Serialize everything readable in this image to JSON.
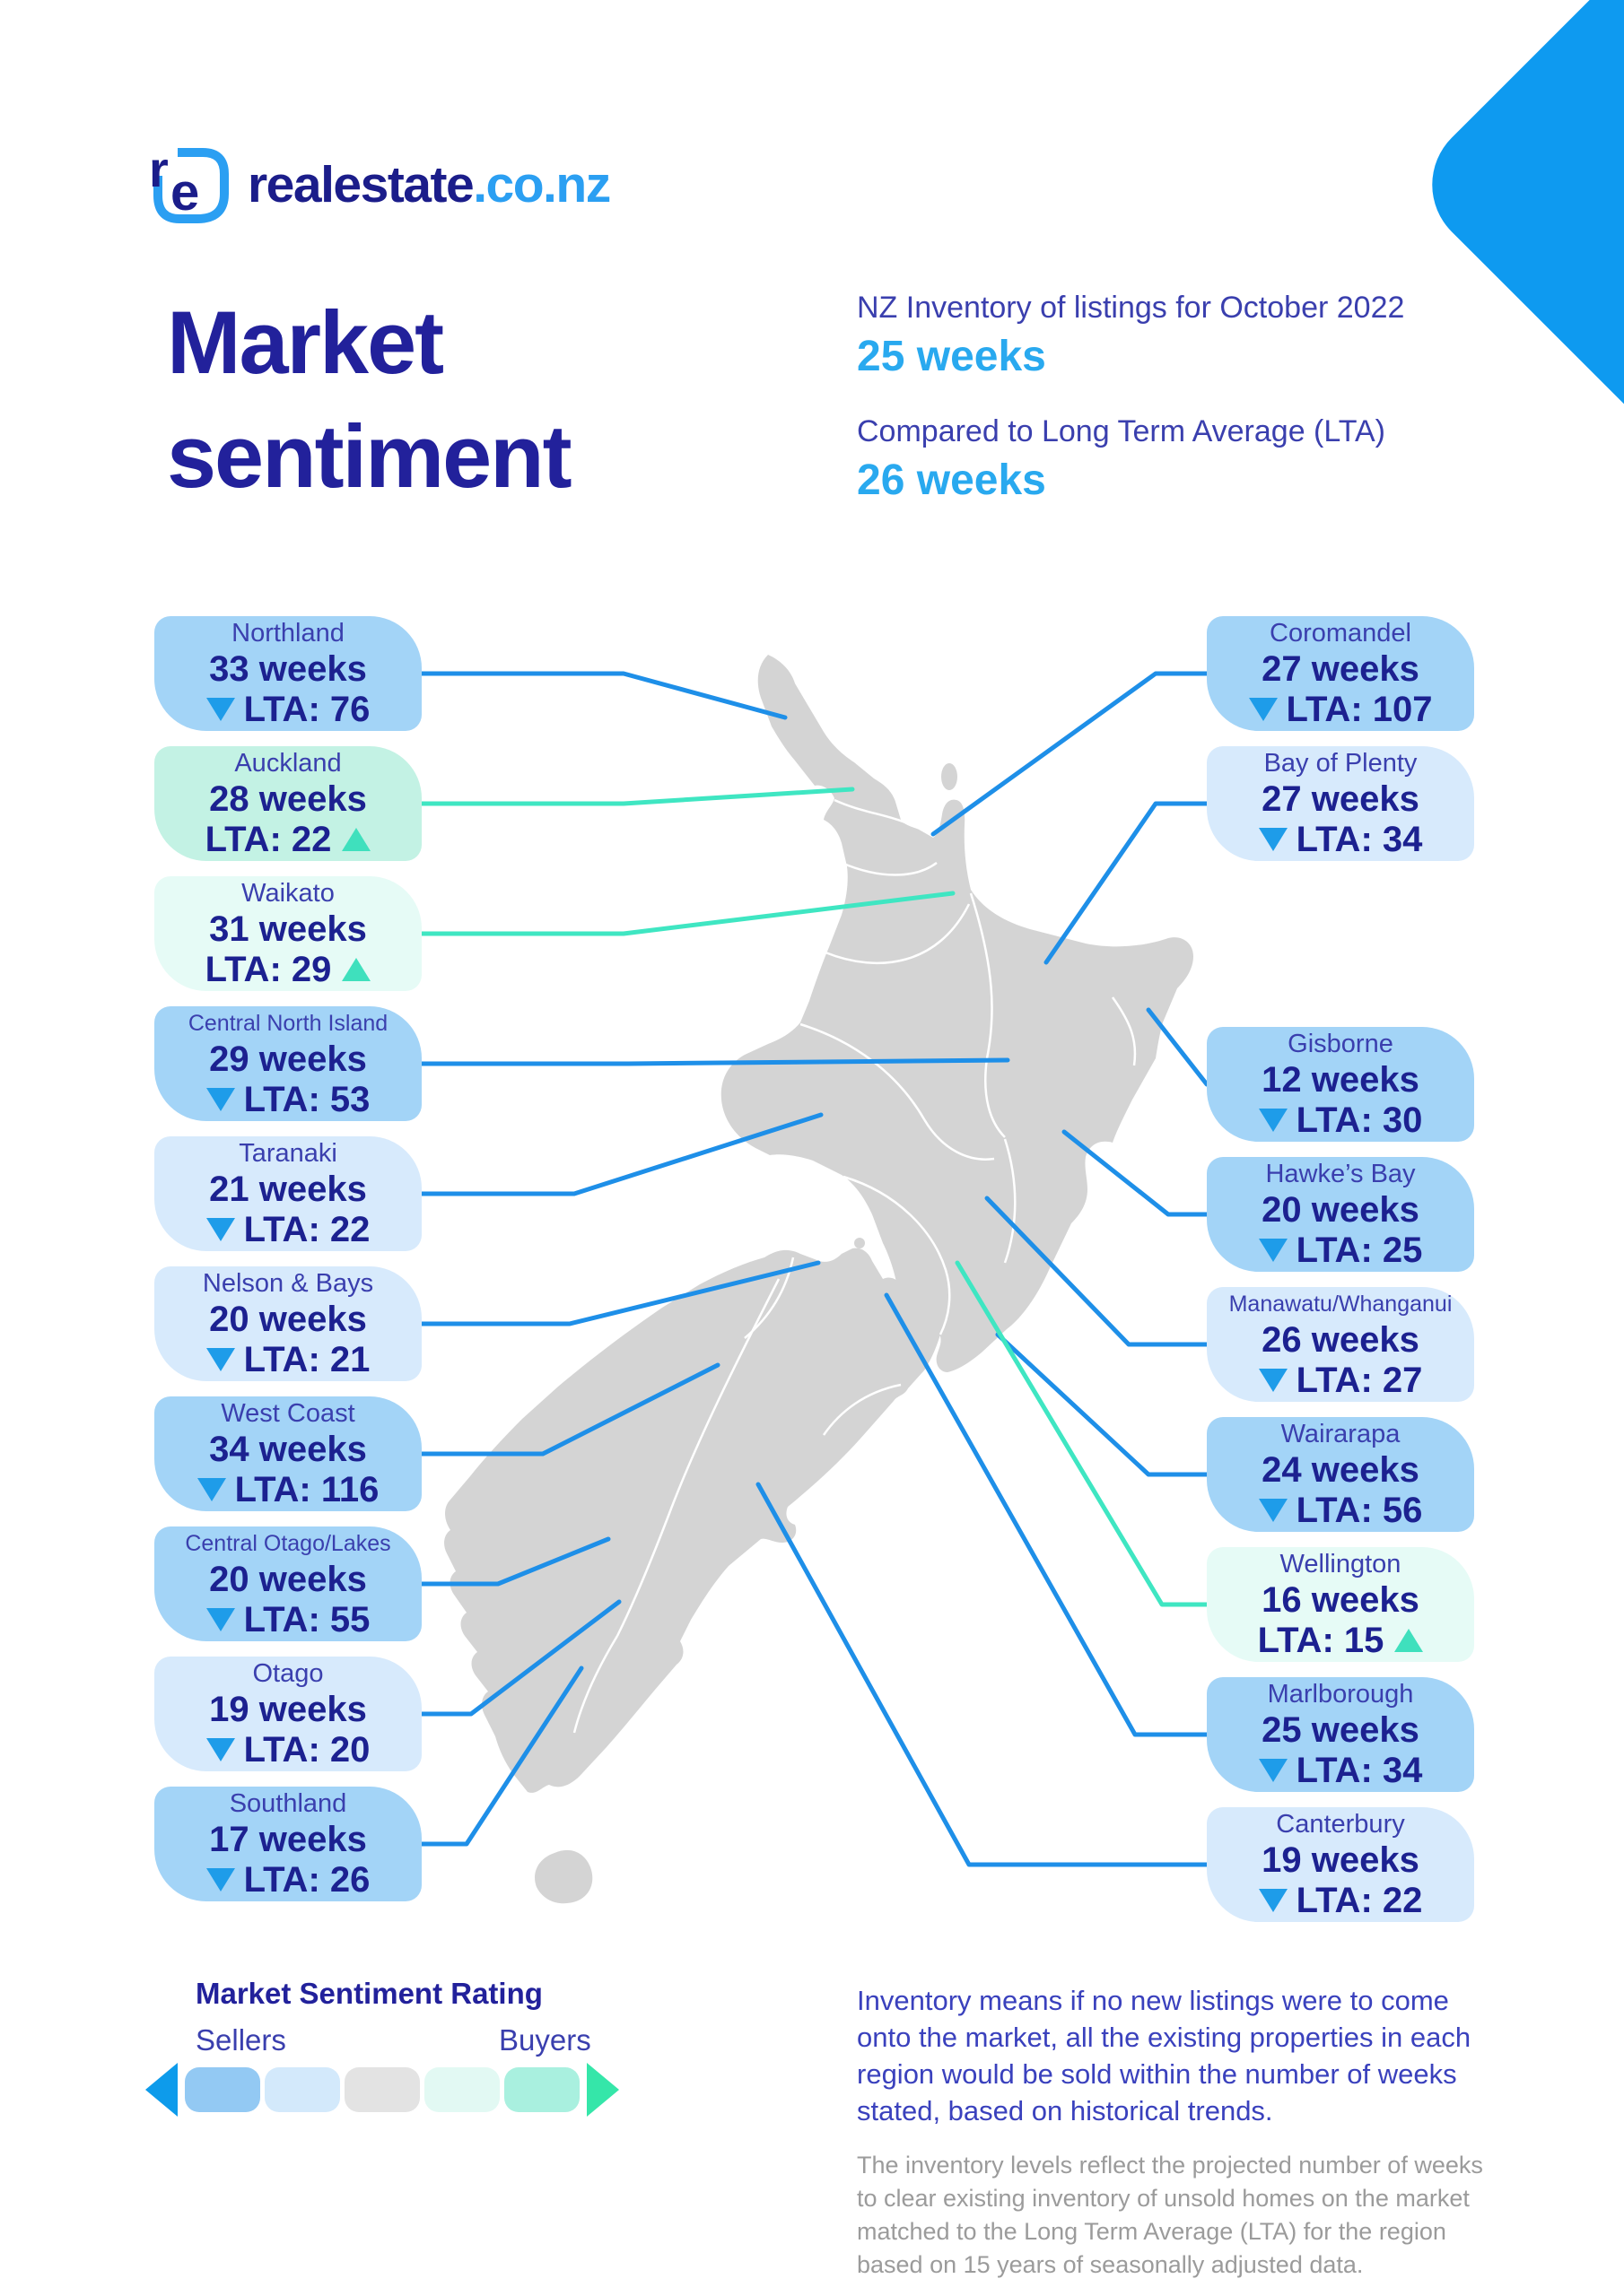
{
  "brand": {
    "wordmark": "realestate",
    "domain": ".co.nz"
  },
  "title": {
    "line1": "Market",
    "line2": "sentiment"
  },
  "header": {
    "stat1_label": "NZ Inventory of listings for October 2022",
    "stat1_value": "25 weeks",
    "stat2_label": "Compared to Long Term Average (LTA)",
    "stat2_value": "26 weeks"
  },
  "regions": [
    {
      "name": "Northland",
      "weeks": "33 weeks",
      "lta": "LTA: 76",
      "direction": "down",
      "tone": "blue-mid",
      "side": "left"
    },
    {
      "name": "Auckland",
      "weeks": "28 weeks",
      "lta": "LTA: 22",
      "direction": "up",
      "tone": "mint",
      "side": "left"
    },
    {
      "name": "Waikato",
      "weeks": "31 weeks",
      "lta": "LTA: 29",
      "direction": "up",
      "tone": "mint-light",
      "side": "left"
    },
    {
      "name": "Central North Island",
      "weeks": "29 weeks",
      "lta": "LTA: 53",
      "direction": "down",
      "tone": "blue-mid",
      "side": "left"
    },
    {
      "name": "Taranaki",
      "weeks": "21 weeks",
      "lta": "LTA: 22",
      "direction": "down",
      "tone": "blue-light",
      "side": "left"
    },
    {
      "name": "Nelson & Bays",
      "weeks": "20 weeks",
      "lta": "LTA: 21",
      "direction": "down",
      "tone": "blue-light",
      "side": "left"
    },
    {
      "name": "West Coast",
      "weeks": "34 weeks",
      "lta": "LTA: 116",
      "direction": "down",
      "tone": "blue-mid",
      "side": "left"
    },
    {
      "name": "Central Otago/Lakes",
      "weeks": "20 weeks",
      "lta": "LTA: 55",
      "direction": "down",
      "tone": "blue-mid",
      "side": "left"
    },
    {
      "name": "Otago",
      "weeks": "19 weeks",
      "lta": "LTA: 20",
      "direction": "down",
      "tone": "blue-light",
      "side": "left"
    },
    {
      "name": "Southland",
      "weeks": "17 weeks",
      "lta": "LTA: 26",
      "direction": "down",
      "tone": "blue-mid",
      "side": "left"
    },
    {
      "name": "Coromandel",
      "weeks": "27 weeks",
      "lta": "LTA: 107",
      "direction": "down",
      "tone": "blue-mid",
      "side": "right"
    },
    {
      "name": "Bay of Plenty",
      "weeks": "27 weeks",
      "lta": "LTA: 34",
      "direction": "down",
      "tone": "blue-light",
      "side": "right"
    },
    {
      "name": "Gisborne",
      "weeks": "12 weeks",
      "lta": "LTA: 30",
      "direction": "down",
      "tone": "blue-mid",
      "side": "right"
    },
    {
      "name": "Hawke’s Bay",
      "weeks": "20 weeks",
      "lta": "LTA: 25",
      "direction": "down",
      "tone": "blue-mid",
      "side": "right"
    },
    {
      "name": "Manawatu/Whanganui",
      "weeks": "26 weeks",
      "lta": "LTA: 27",
      "direction": "down",
      "tone": "blue-light",
      "side": "right"
    },
    {
      "name": "Wairarapa",
      "weeks": "24 weeks",
      "lta": "LTA: 56",
      "direction": "down",
      "tone": "blue-mid",
      "side": "right"
    },
    {
      "name": "Wellington",
      "weeks": "16 weeks",
      "lta": "LTA: 15",
      "direction": "up",
      "tone": "mint-light",
      "side": "right"
    },
    {
      "name": "Marlborough",
      "weeks": "25 weeks",
      "lta": "LTA: 34",
      "direction": "down",
      "tone": "blue-mid",
      "side": "right"
    },
    {
      "name": "Canterbury",
      "weeks": "19 weeks",
      "lta": "LTA: 22",
      "direction": "down",
      "tone": "blue-light",
      "side": "right"
    }
  ],
  "legend": {
    "title": "Market Sentiment Rating",
    "left_label": "Sellers",
    "right_label": "Buyers",
    "scale_colors": [
      "#93c9f3",
      "#d3e9fb",
      "#e3e3e3",
      "#e2f9f3",
      "#a9f0df"
    ],
    "left_arrow_color": "#0d9beb",
    "right_arrow_color": "#35e6a9"
  },
  "notes": {
    "primary": "Inventory means if no new listings were to come onto the market, all the existing properties in each region would be sold within the number of weeks stated, based on historical trends.",
    "secondary": "The inventory levels reflect the projected number of weeks to clear existing inventory of unsold homes on the market matched to the Long Term Average (LTA) for the region based on 15 years of seasonally adjusted data."
  },
  "colors": {
    "brand_navy": "#1b1d8a",
    "brand_blue": "#2b9ff2",
    "title_navy": "#22219b",
    "value_navy": "#1c2190",
    "label_indigo": "#3a3fae",
    "accent_blue": "#29a9ef",
    "line_blue": "#1e8fe8",
    "line_teal": "#3fe6c2",
    "arrow_down": "#1e9ce9",
    "arrow_up": "#3fe0bd",
    "box_blue_mid": "#a3d4f7",
    "box_blue_light": "#d7eafc",
    "box_mint": "#c3f2e4",
    "box_mint_light": "#e6fbf6",
    "map_gray": "#d4d4d4",
    "corner_blue": "#0e9af0",
    "note_blue": "#3a41bd",
    "note_gray": "#9b9b9b"
  }
}
